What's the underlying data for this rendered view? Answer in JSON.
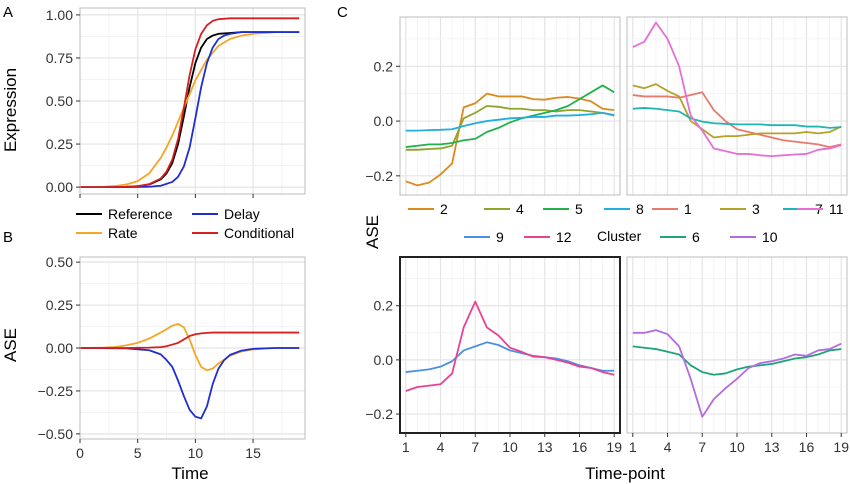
{
  "figure": {
    "labels": {
      "A": "A",
      "B": "B",
      "C": "C"
    }
  },
  "chart_data": [
    {
      "id": "A",
      "type": "line",
      "ylabel": "Expression",
      "xlim": [
        0,
        19.5
      ],
      "ylim": [
        -0.04,
        1.04
      ],
      "yticks": [
        0,
        0.25,
        0.5,
        0.75,
        1
      ],
      "ytick_labels": [
        "0.00",
        "0.25",
        "0.50",
        "0.75",
        "1.00"
      ],
      "xticks": [
        0,
        5,
        10,
        15
      ],
      "show_x_labels": false,
      "series": [
        {
          "name": "Reference",
          "color": "#000000",
          "x": [
            0,
            2,
            4,
            5,
            6,
            7,
            7.5,
            8,
            8.5,
            9,
            9.5,
            10,
            10.5,
            11,
            11.5,
            12,
            13,
            14,
            15,
            16,
            17,
            18,
            19
          ],
          "y": [
            0,
            0,
            0.002,
            0.005,
            0.015,
            0.045,
            0.08,
            0.14,
            0.25,
            0.41,
            0.58,
            0.72,
            0.81,
            0.86,
            0.88,
            0.89,
            0.895,
            0.9,
            0.9,
            0.9,
            0.9,
            0.9,
            0.9
          ]
        },
        {
          "name": "Rate",
          "color": "#f5a623",
          "x": [
            0,
            2,
            3,
            4,
            5,
            6,
            7,
            7.5,
            8,
            8.5,
            9,
            9.5,
            10,
            10.5,
            11,
            11.5,
            12,
            13,
            14,
            15,
            16,
            17,
            18,
            19
          ],
          "y": [
            0,
            0.002,
            0.006,
            0.015,
            0.035,
            0.08,
            0.17,
            0.23,
            0.3,
            0.38,
            0.46,
            0.54,
            0.62,
            0.68,
            0.74,
            0.78,
            0.82,
            0.86,
            0.88,
            0.89,
            0.895,
            0.9,
            0.9,
            0.9
          ]
        },
        {
          "name": "Delay",
          "color": "#1f2fcf",
          "x": [
            0,
            2,
            4,
            6,
            7,
            8,
            8.5,
            9,
            9.5,
            10,
            10.5,
            11,
            11.5,
            12,
            12.5,
            13,
            14,
            15,
            16,
            17,
            18,
            19
          ],
          "y": [
            0,
            0,
            0,
            0.002,
            0.008,
            0.03,
            0.06,
            0.12,
            0.23,
            0.4,
            0.58,
            0.72,
            0.81,
            0.86,
            0.88,
            0.89,
            0.9,
            0.9,
            0.9,
            0.9,
            0.9,
            0.9
          ]
        },
        {
          "name": "Conditional",
          "color": "#d42020",
          "x": [
            0,
            2,
            4,
            5,
            6,
            7,
            7.5,
            8,
            8.5,
            9,
            9.5,
            10,
            10.5,
            11,
            11.5,
            12,
            13,
            14,
            15,
            16,
            17,
            18,
            19
          ],
          "y": [
            0,
            0,
            0.002,
            0.006,
            0.017,
            0.05,
            0.09,
            0.16,
            0.28,
            0.46,
            0.65,
            0.8,
            0.89,
            0.94,
            0.965,
            0.975,
            0.98,
            0.98,
            0.98,
            0.98,
            0.98,
            0.98,
            0.98
          ]
        }
      ]
    },
    {
      "id": "B",
      "type": "line",
      "ylabel": "ASE",
      "xlabel": "Time",
      "xlim": [
        0,
        19.5
      ],
      "ylim": [
        -0.53,
        0.53
      ],
      "yticks": [
        -0.5,
        -0.25,
        0,
        0.25,
        0.5
      ],
      "ytick_labels": [
        "−0.50",
        "−0.25",
        "0.00",
        "0.25",
        "0.50"
      ],
      "xticks": [
        0,
        5,
        10,
        15
      ],
      "xtick_labels": [
        "0",
        "5",
        "10",
        "15"
      ],
      "series": [
        {
          "name": "Rate",
          "color": "#f5a623",
          "x": [
            0,
            2,
            3,
            4,
            5,
            6,
            7,
            7.5,
            8,
            8.5,
            9,
            9.5,
            10,
            10.5,
            11,
            11.5,
            12,
            13,
            14,
            15,
            16,
            17,
            18,
            19
          ],
          "y": [
            0,
            0.002,
            0.006,
            0.015,
            0.03,
            0.055,
            0.09,
            0.11,
            0.13,
            0.14,
            0.12,
            0.05,
            -0.04,
            -0.11,
            -0.13,
            -0.12,
            -0.09,
            -0.045,
            -0.02,
            -0.008,
            -0.003,
            0,
            0,
            0
          ]
        },
        {
          "name": "Delay",
          "color": "#1f2fcf",
          "x": [
            0,
            4,
            6,
            7,
            7.5,
            8,
            8.5,
            9,
            9.5,
            10,
            10.5,
            11,
            11.5,
            12,
            12.5,
            13,
            14,
            15,
            16,
            17,
            18,
            19
          ],
          "y": [
            0,
            -0.002,
            -0.013,
            -0.037,
            -0.07,
            -0.11,
            -0.19,
            -0.28,
            -0.36,
            -0.4,
            -0.41,
            -0.34,
            -0.21,
            -0.12,
            -0.07,
            -0.04,
            -0.015,
            -0.005,
            -0.002,
            0,
            0,
            0
          ]
        },
        {
          "name": "Conditional",
          "color": "#d42020",
          "x": [
            0,
            4,
            5,
            6,
            7,
            7.5,
            8,
            8.5,
            9,
            9.5,
            10,
            10.5,
            11,
            11.5,
            12,
            13,
            14,
            15,
            16,
            17,
            18,
            19
          ],
          "y": [
            0,
            0,
            0.001,
            0.002,
            0.005,
            0.01,
            0.02,
            0.03,
            0.05,
            0.07,
            0.08,
            0.085,
            0.088,
            0.09,
            0.09,
            0.09,
            0.09,
            0.09,
            0.09,
            0.09,
            0.09,
            0.09
          ]
        }
      ]
    },
    {
      "id": "C-top-left",
      "type": "line",
      "xlim": [
        0.5,
        19.5
      ],
      "ylim": [
        -0.27,
        0.38
      ],
      "yticks": [
        -0.2,
        0,
        0.2
      ],
      "ytick_labels": [
        "−0.2",
        "0.0",
        "0.2"
      ],
      "series": [
        {
          "name": "2",
          "color": "#d98b1e",
          "x": [
            1,
            2,
            3,
            4,
            5,
            6,
            7,
            8,
            9,
            10,
            11,
            12,
            13,
            14,
            15,
            16,
            17,
            18,
            19
          ],
          "y": [
            -0.22,
            -0.235,
            -0.225,
            -0.195,
            -0.155,
            0.05,
            0.065,
            0.1,
            0.09,
            0.09,
            0.09,
            0.08,
            0.078,
            0.085,
            0.088,
            0.082,
            0.072,
            0.045,
            0.04
          ]
        },
        {
          "name": "4",
          "color": "#8fa42e",
          "x": [
            1,
            2,
            3,
            4,
            5,
            6,
            7,
            8,
            9,
            10,
            11,
            12,
            13,
            14,
            15,
            16,
            17,
            18,
            19
          ],
          "y": [
            -0.105,
            -0.105,
            -0.102,
            -0.1,
            -0.09,
            0.01,
            0.03,
            0.055,
            0.052,
            0.045,
            0.045,
            0.04,
            0.04,
            0.035,
            0.04,
            0.04,
            0.035,
            0.03,
            0.02
          ]
        },
        {
          "name": "5",
          "color": "#22b14c",
          "x": [
            1,
            2,
            3,
            4,
            5,
            6,
            7,
            8,
            9,
            10,
            11,
            12,
            13,
            14,
            15,
            16,
            17,
            18,
            19
          ],
          "y": [
            -0.095,
            -0.09,
            -0.085,
            -0.085,
            -0.08,
            -0.07,
            -0.065,
            -0.04,
            -0.025,
            -0.005,
            0.01,
            0.02,
            0.03,
            0.04,
            0.055,
            0.08,
            0.105,
            0.13,
            0.105
          ]
        },
        {
          "name": "8",
          "color": "#22aee0",
          "x": [
            1,
            2,
            3,
            4,
            5,
            6,
            7,
            8,
            9,
            10,
            11,
            12,
            13,
            14,
            15,
            16,
            17,
            18,
            19
          ],
          "y": [
            -0.035,
            -0.035,
            -0.033,
            -0.032,
            -0.03,
            -0.018,
            -0.008,
            0,
            0.005,
            0.01,
            0.012,
            0.015,
            0.015,
            0.02,
            0.02,
            0.022,
            0.025,
            0.03,
            0.022
          ]
        }
      ]
    },
    {
      "id": "C-top-right",
      "type": "line",
      "xlim": [
        0.5,
        19.5
      ],
      "ylim": [
        -0.27,
        0.38
      ],
      "series": [
        {
          "name": "1",
          "color": "#e87a6d",
          "x": [
            1,
            2,
            3,
            4,
            5,
            6,
            7,
            8,
            9,
            10,
            11,
            12,
            13,
            14,
            15,
            16,
            17,
            18,
            19
          ],
          "y": [
            0.095,
            0.09,
            0.09,
            0.09,
            0.085,
            0.095,
            0.105,
            0.04,
            0.0,
            -0.03,
            -0.04,
            -0.05,
            -0.06,
            -0.07,
            -0.075,
            -0.08,
            -0.085,
            -0.095,
            -0.085
          ]
        },
        {
          "name": "3",
          "color": "#b5a22b",
          "x": [
            1,
            2,
            3,
            4,
            5,
            6,
            7,
            8,
            9,
            10,
            11,
            12,
            13,
            14,
            15,
            16,
            17,
            18,
            19
          ],
          "y": [
            0.13,
            0.12,
            0.135,
            0.11,
            0.09,
            0.0,
            -0.03,
            -0.06,
            -0.055,
            -0.055,
            -0.05,
            -0.045,
            -0.045,
            -0.045,
            -0.045,
            -0.04,
            -0.045,
            -0.04,
            -0.02
          ]
        },
        {
          "name": "7",
          "color": "#21b5b0",
          "x": [
            1,
            2,
            3,
            4,
            5,
            6,
            7,
            8,
            9,
            10,
            11,
            12,
            13,
            14,
            15,
            16,
            17,
            18,
            19
          ],
          "y": [
            0.045,
            0.048,
            0.045,
            0.04,
            0.035,
            0.01,
            -0.002,
            -0.008,
            -0.01,
            -0.012,
            -0.012,
            -0.012,
            -0.015,
            -0.015,
            -0.015,
            -0.02,
            -0.02,
            -0.025,
            -0.022
          ]
        },
        {
          "name": "11",
          "color": "#e76fd2",
          "x": [
            1,
            2,
            3,
            4,
            5,
            6,
            7,
            8,
            9,
            10,
            11,
            12,
            13,
            14,
            15,
            16,
            17,
            18,
            19
          ],
          "y": [
            0.27,
            0.29,
            0.36,
            0.3,
            0.2,
            0.02,
            -0.035,
            -0.1,
            -0.11,
            -0.12,
            -0.12,
            -0.125,
            -0.128,
            -0.125,
            -0.122,
            -0.12,
            -0.105,
            -0.1,
            -0.088
          ]
        }
      ]
    },
    {
      "id": "C-bottom-left",
      "type": "line",
      "xlim": [
        0.5,
        19.5
      ],
      "ylim": [
        -0.27,
        0.38
      ],
      "yticks": [
        -0.2,
        0,
        0.2
      ],
      "ytick_labels": [
        "−0.2",
        "0.0",
        "0.2"
      ],
      "xticks": [
        1,
        4,
        7,
        10,
        13,
        16,
        19
      ],
      "xtick_labels": [
        "1",
        "4",
        "7",
        "10",
        "13",
        "16",
        "19"
      ],
      "series": [
        {
          "name": "9",
          "color": "#4a90e2",
          "x": [
            1,
            2,
            3,
            4,
            5,
            6,
            7,
            8,
            9,
            10,
            11,
            12,
            13,
            14,
            15,
            16,
            17,
            18,
            19
          ],
          "y": [
            -0.045,
            -0.04,
            -0.035,
            -0.025,
            -0.005,
            0.035,
            0.05,
            0.065,
            0.055,
            0.035,
            0.025,
            0.015,
            0.01,
            0.005,
            -0.005,
            -0.02,
            -0.03,
            -0.04,
            -0.04
          ]
        },
        {
          "name": "12",
          "color": "#e84393",
          "x": [
            1,
            2,
            3,
            4,
            5,
            6,
            7,
            8,
            9,
            10,
            11,
            12,
            13,
            14,
            15,
            16,
            17,
            18,
            19
          ],
          "y": [
            -0.115,
            -0.1,
            -0.095,
            -0.09,
            -0.05,
            0.12,
            0.215,
            0.12,
            0.09,
            0.045,
            0.03,
            0.012,
            0.01,
            0.0,
            -0.01,
            -0.025,
            -0.03,
            -0.045,
            -0.055
          ]
        }
      ]
    },
    {
      "id": "C-bottom-right",
      "type": "line",
      "xlim": [
        0.5,
        19.5
      ],
      "ylim": [
        -0.27,
        0.38
      ],
      "xticks": [
        1,
        4,
        7,
        10,
        13,
        16,
        19
      ],
      "xtick_labels": [
        "1",
        "4",
        "7",
        "10",
        "13",
        "16",
        "19"
      ],
      "series": [
        {
          "name": "6",
          "color": "#1fa37a",
          "x": [
            1,
            2,
            3,
            4,
            5,
            6,
            7,
            8,
            9,
            10,
            11,
            12,
            13,
            14,
            15,
            16,
            17,
            18,
            19
          ],
          "y": [
            0.05,
            0.045,
            0.04,
            0.03,
            0.02,
            -0.02,
            -0.045,
            -0.055,
            -0.05,
            -0.035,
            -0.025,
            -0.02,
            -0.015,
            -0.005,
            0.005,
            0.01,
            0.02,
            0.035,
            0.04
          ]
        },
        {
          "name": "10",
          "color": "#b36be0",
          "x": [
            1,
            2,
            3,
            4,
            5,
            6,
            7,
            8,
            9,
            10,
            11,
            12,
            13,
            14,
            15,
            16,
            17,
            18,
            19
          ],
          "y": [
            0.1,
            0.1,
            0.11,
            0.095,
            0.05,
            -0.07,
            -0.21,
            -0.145,
            -0.105,
            -0.07,
            -0.03,
            -0.012,
            -0.005,
            0.005,
            0.02,
            0.015,
            0.035,
            0.04,
            0.06
          ]
        }
      ]
    }
  ],
  "legend_A": [
    {
      "name": "Reference",
      "color": "#000000"
    },
    {
      "name": "Delay",
      "color": "#1f2fcf"
    },
    {
      "name": "Rate",
      "color": "#f5a623"
    },
    {
      "name": "Conditional",
      "color": "#d42020"
    }
  ],
  "legend_C_left": [
    {
      "name": "2",
      "color": "#d98b1e"
    },
    {
      "name": "4",
      "color": "#8fa42e"
    },
    {
      "name": "5",
      "color": "#22b14c"
    },
    {
      "name": "8",
      "color": "#22aee0"
    },
    {
      "name": "9",
      "color": "#4a90e2"
    },
    {
      "name": "12",
      "color": "#e84393"
    }
  ],
  "legend_C_right": [
    {
      "name": "1",
      "color": "#e87a6d"
    },
    {
      "name": "3",
      "color": "#b5a22b"
    },
    {
      "name": "7",
      "color": "#21b5b0"
    },
    {
      "name": "11",
      "color": "#e76fd2"
    },
    {
      "name": "6",
      "color": "#1fa37a"
    },
    {
      "name": "10",
      "color": "#b36be0"
    }
  ],
  "legend_C_title": "Cluster",
  "panel_C": {
    "ylabel": "ASE",
    "xlabel": "Time-point"
  }
}
